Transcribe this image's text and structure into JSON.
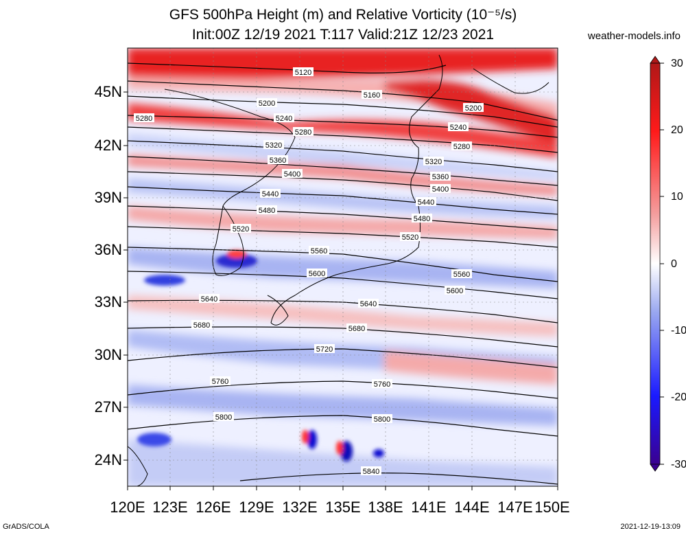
{
  "title": {
    "line1": "GFS 500hPa Height (m) and Relative Vorticity (10⁻⁵/s)",
    "line2": "Init:00Z 12/19 2021 T:117 Valid:21Z 12/23 2021"
  },
  "source_site": "weather-models.info",
  "footer": {
    "left": "GrADS/COLA",
    "right": "2021-12-19-13:09"
  },
  "latitude_labels": [
    "45N",
    "42N",
    "39N",
    "36N",
    "33N",
    "30N",
    "27N",
    "24N"
  ],
  "longitude_labels": [
    "120E",
    "123E",
    "126E",
    "129E",
    "132E",
    "135E",
    "138E",
    "141E",
    "144E",
    "147E",
    "150E"
  ],
  "contours": [
    {
      "value": "5120",
      "labels": [
        "5120"
      ]
    },
    {
      "value": "5160",
      "labels": [
        "5160"
      ]
    },
    {
      "value": "5200",
      "labels": [
        "5200",
        "5200"
      ]
    },
    {
      "value": "5240",
      "labels": [
        "5240",
        "5240"
      ]
    },
    {
      "value": "5280",
      "labels": [
        "5280",
        "5280",
        "5280"
      ]
    },
    {
      "value": "5320",
      "labels": [
        "5320",
        "5320"
      ]
    },
    {
      "value": "5360",
      "labels": [
        "5360",
        "5360"
      ]
    },
    {
      "value": "5400",
      "labels": [
        "5400",
        "5400"
      ]
    },
    {
      "value": "5440",
      "labels": [
        "5440",
        "5440"
      ]
    },
    {
      "value": "5480",
      "labels": [
        "5480",
        "5480"
      ]
    },
    {
      "value": "5520",
      "labels": [
        "5520",
        "5520"
      ]
    },
    {
      "value": "5560",
      "labels": [
        "5560",
        "5560"
      ]
    },
    {
      "value": "5600",
      "labels": [
        "5600",
        "5600"
      ]
    },
    {
      "value": "5640",
      "labels": [
        "5640",
        "5640"
      ]
    },
    {
      "value": "5680",
      "labels": [
        "5680",
        "5680"
      ]
    },
    {
      "value": "5720",
      "labels": [
        "5720"
      ]
    },
    {
      "value": "5760",
      "labels": [
        "5760",
        "5760"
      ]
    },
    {
      "value": "5800",
      "labels": [
        "5800",
        "5800"
      ]
    },
    {
      "value": "5840",
      "labels": [
        "5840"
      ]
    }
  ],
  "colorbar": {
    "labels": [
      "30",
      "20",
      "10",
      "0",
      "-10",
      "-20",
      "-30"
    ],
    "colors": {
      "max": "#b01818",
      "high": "#ff1a1a",
      "mid_pos": "#f4a0a0",
      "zero": "#ffffff",
      "mid_neg": "#9aa8f0",
      "low": "#1a1aff",
      "min": "#3a0090"
    }
  }
}
